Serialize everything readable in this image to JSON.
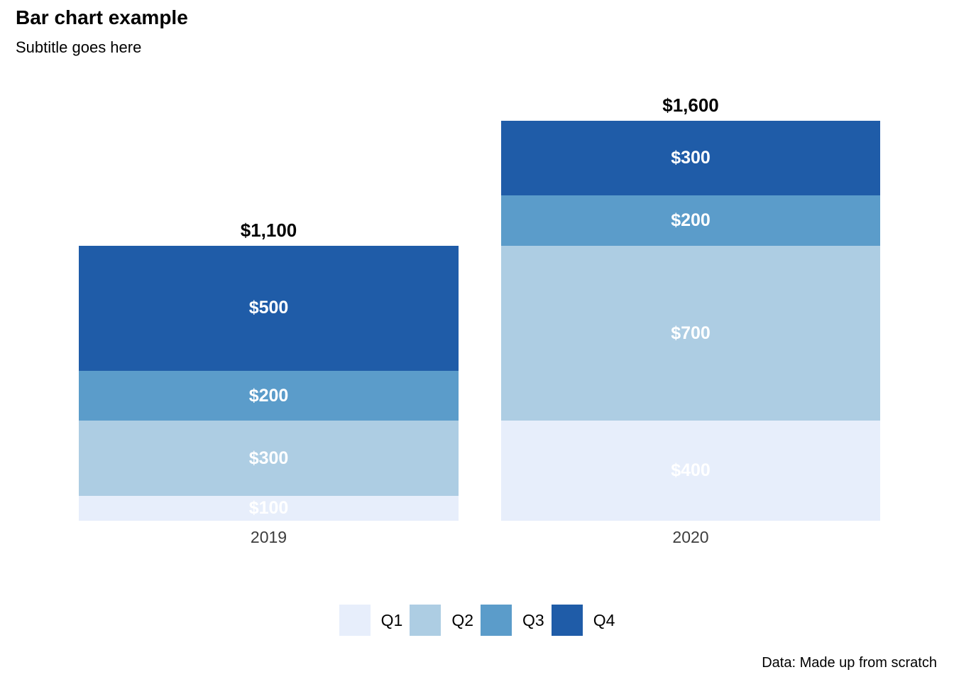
{
  "header": {
    "title": "Bar chart example",
    "subtitle": "Subtitle goes here"
  },
  "caption": "Data: Made up from scratch",
  "chart_data": {
    "type": "bar",
    "stacked": true,
    "title": "Bar chart example",
    "subtitle": "Subtitle goes here",
    "caption": "Data: Made up from scratch",
    "categories": [
      "2019",
      "2020"
    ],
    "series": [
      {
        "name": "Q1",
        "color": "#e7eefb",
        "values": [
          100,
          400
        ],
        "labels": [
          "$100",
          "$400"
        ]
      },
      {
        "name": "Q2",
        "color": "#adcde3",
        "values": [
          300,
          700
        ],
        "labels": [
          "$300",
          "$700"
        ]
      },
      {
        "name": "Q3",
        "color": "#5b9cca",
        "values": [
          200,
          200
        ],
        "labels": [
          "$200",
          "$200"
        ]
      },
      {
        "name": "Q4",
        "color": "#1f5ca8",
        "values": [
          500,
          300
        ],
        "labels": [
          "$500",
          "$300"
        ]
      }
    ],
    "totals": [
      1100,
      1600
    ],
    "total_labels": [
      "$1,100",
      "$1,600"
    ],
    "legend": [
      "Q1",
      "Q2",
      "Q3",
      "Q4"
    ],
    "legend_position": "bottom-center",
    "grid": false,
    "y_axis_visible": false,
    "value_label_color": "#ffffff",
    "x_tick_label_color": "#3d3d3d"
  }
}
